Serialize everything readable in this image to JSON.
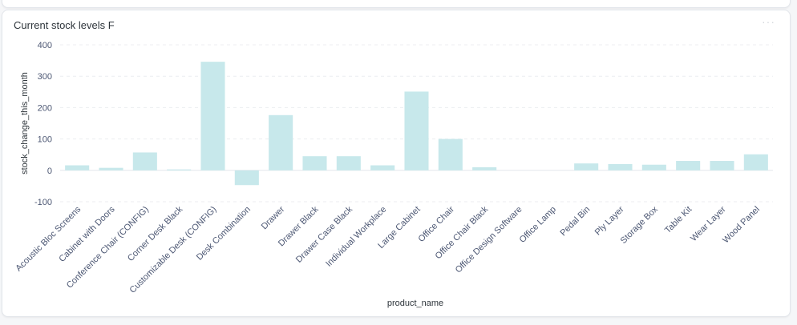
{
  "card": {
    "title": "Current stock levels F",
    "more_icon": "more-dots-icon"
  },
  "chart_data": {
    "type": "bar",
    "title": "Current stock levels F",
    "xlabel": "product_name",
    "ylabel": "stock_change_this_month",
    "ylim": [
      -100,
      400
    ],
    "yticks": [
      -100,
      0,
      100,
      200,
      300,
      400
    ],
    "grid": true,
    "bar_color": "#c7e8eb",
    "categories": [
      "Acoustic Bloc Screens",
      "Cabinet with Doors",
      "Conference Chair (CONFIG)",
      "Corner Desk Black",
      "Customizable Desk (CONFIG)",
      "Desk Combination",
      "Drawer",
      "Drawer Black",
      "Drawer Case Black",
      "Individual Workplace",
      "Large Cabinet",
      "Office Chair",
      "Office Chair Black",
      "Office Design Software",
      "Office Lamp",
      "Pedal Bin",
      "Ply Layer",
      "Storage Box",
      "Table Kit",
      "Wear Layer",
      "Wood Panel"
    ],
    "values": [
      16,
      8,
      57,
      3,
      346,
      -47,
      176,
      45,
      45,
      16,
      251,
      100,
      10,
      0,
      0,
      22,
      20,
      18,
      30,
      30,
      51
    ]
  }
}
